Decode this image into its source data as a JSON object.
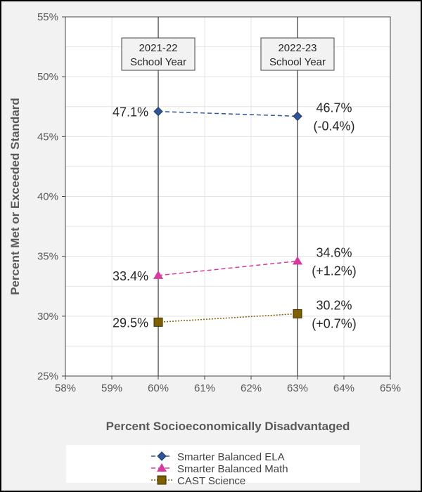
{
  "chart_data": {
    "type": "line",
    "xlabel": "Percent Socioeconomically Disadvantaged",
    "ylabel": "Percent Met or Exceeded Standard",
    "xlim": [
      58,
      65
    ],
    "ylim": [
      25,
      55
    ],
    "x_ticks": [
      "58%",
      "59%",
      "60%",
      "61%",
      "62%",
      "63%",
      "64%",
      "65%"
    ],
    "y_ticks": [
      "25%",
      "30%",
      "35%",
      "40%",
      "45%",
      "50%",
      "55%"
    ],
    "grid": true,
    "legend_position": "bottom",
    "year_markers": [
      {
        "x": 60,
        "line1": "2021-22",
        "line2": "School Year"
      },
      {
        "x": 63,
        "line1": "2022-23",
        "line2": "School Year"
      }
    ],
    "series": [
      {
        "name": "Smarter Balanced ELA",
        "color": "#2f5597",
        "marker": "diamond",
        "dash": "dashed",
        "x": [
          60,
          63
        ],
        "y": [
          47.1,
          46.7
        ],
        "labels": [
          "47.1%",
          "46.7%"
        ],
        "change": "(-0.4%)"
      },
      {
        "name": "Smarter Balanced Math",
        "color": "#d63aa0",
        "marker": "triangle",
        "dash": "dashed",
        "x": [
          60,
          63
        ],
        "y": [
          33.4,
          34.6
        ],
        "labels": [
          "33.4%",
          "34.6%"
        ],
        "change": "(+1.2%)"
      },
      {
        "name": "CAST Science",
        "color": "#7f6000",
        "marker": "square",
        "dash": "dotted",
        "x": [
          60,
          63
        ],
        "y": [
          29.5,
          30.2
        ],
        "labels": [
          "29.5%",
          "30.2%"
        ],
        "change": "(+0.7%)"
      }
    ]
  }
}
